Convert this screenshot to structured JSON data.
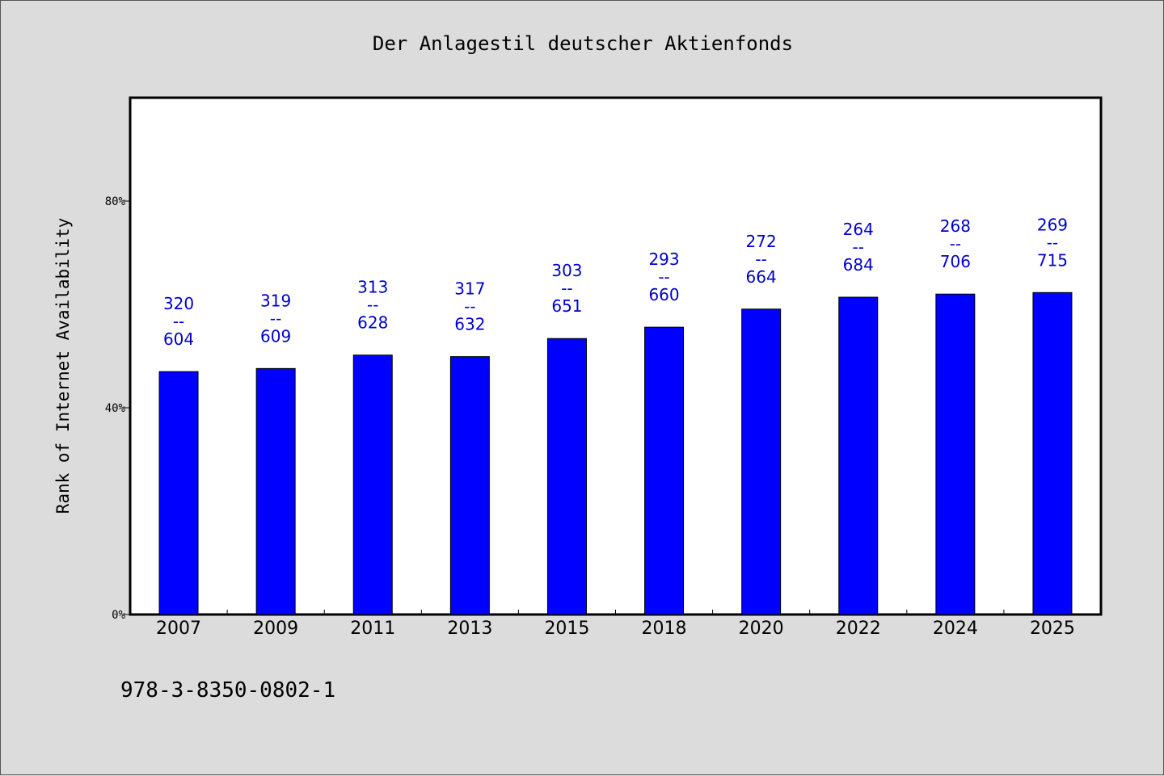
{
  "colors": {
    "background": "#dcdcdc",
    "plot_background": "#ffffff",
    "bar": "#0000ff",
    "data_label": "#0000cc"
  },
  "footnote": "978-3-8350-0802-1",
  "chart_data": {
    "type": "bar",
    "title": "Der Anlagestil deutscher Aktienfonds",
    "xlabel": "",
    "ylabel": "Rank of Internet Availability",
    "ylim": [
      0,
      100
    ],
    "yticks": [
      0,
      40,
      80
    ],
    "ytick_labels": [
      "0%",
      "40%",
      "80%"
    ],
    "grid": false,
    "categories": [
      "2007",
      "2009",
      "2011",
      "2013",
      "2015",
      "2018",
      "2020",
      "2022",
      "2024",
      "2025"
    ],
    "values": [
      47.0,
      47.6,
      50.2,
      49.9,
      53.4,
      55.6,
      59.1,
      61.4,
      62.0,
      62.3
    ],
    "labels_top": [
      "320",
      "319",
      "313",
      "317",
      "303",
      "293",
      "272",
      "264",
      "268",
      "269"
    ],
    "labels_sep": "--",
    "labels_bottom": [
      "604",
      "609",
      "628",
      "632",
      "651",
      "660",
      "664",
      "684",
      "706",
      "715"
    ]
  }
}
